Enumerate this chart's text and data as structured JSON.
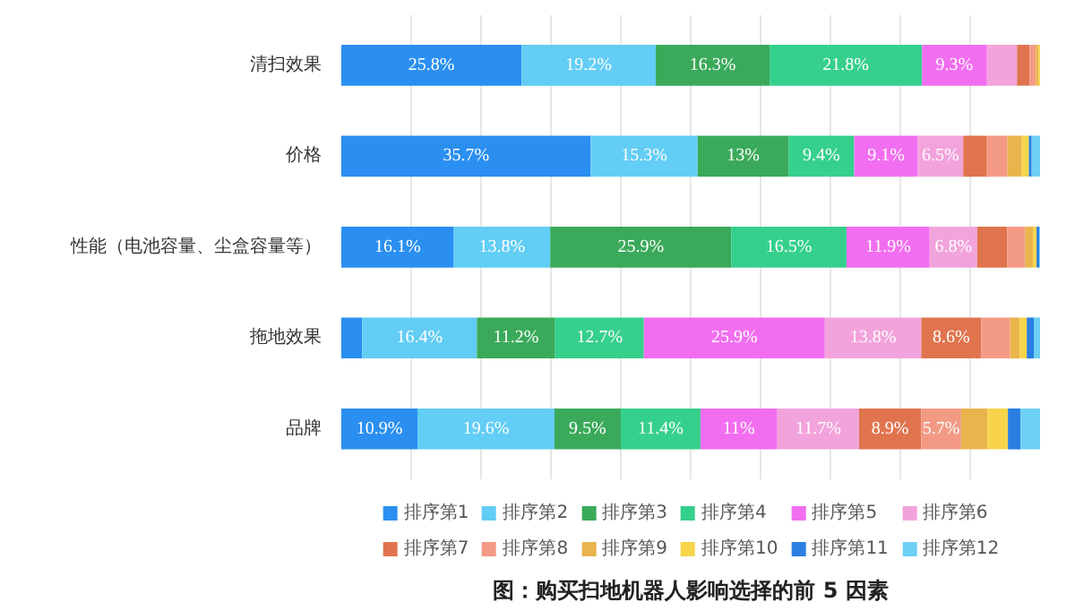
{
  "chart_data": {
    "type": "bar",
    "orientation": "horizontal",
    "stacked": true,
    "title": "图：购买扫地机器人影响选择的前 5 因素",
    "categories": [
      "清扫效果",
      "价格",
      "性能（电池容量、尘盒容量等）",
      "拖地效果",
      "品牌"
    ],
    "xlim": [
      0,
      100
    ],
    "xticks": [
      {
        "value": 10,
        "label": null
      },
      {
        "value": 20,
        "label": null
      },
      {
        "value": 30,
        "label": null
      },
      {
        "value": 40,
        "label": null
      },
      {
        "value": 50,
        "label": null
      },
      {
        "value": 60,
        "label": null
      },
      {
        "value": 70,
        "label": null
      },
      {
        "value": 80,
        "label": null
      },
      {
        "value": 90,
        "label": null
      }
    ],
    "tick_labels": "y",
    "grid": "x",
    "legend": "bottom",
    "series": [
      {
        "name": "排序第1",
        "color": "#2a8ff0",
        "values": [
          25.8,
          35.7,
          16.1,
          3.0,
          10.9
        ],
        "value_labels": [
          "25.8%",
          "35.7%",
          "16.1%",
          null,
          "10.9%"
        ]
      },
      {
        "name": "排序第2",
        "color": "#62cdf5",
        "values": [
          19.2,
          15.3,
          13.8,
          16.4,
          19.6
        ],
        "value_labels": [
          "19.2%",
          "15.3%",
          "13.8%",
          "16.4%",
          "19.6%"
        ]
      },
      {
        "name": "排序第3",
        "color": "#3aaa5a",
        "values": [
          16.3,
          13,
          25.9,
          11.2,
          9.5
        ],
        "value_labels": [
          "16.3%",
          "13%",
          "25.9%",
          "11.2%",
          "9.5%"
        ]
      },
      {
        "name": "排序第4",
        "color": "#35d08c",
        "values": [
          21.8,
          9.4,
          16.5,
          12.7,
          11.4
        ],
        "value_labels": [
          "21.8%",
          "9.4%",
          "16.5%",
          "12.7%",
          "11.4%"
        ]
      },
      {
        "name": "排序第5",
        "color": "#f26ef0",
        "values": [
          9.3,
          9.1,
          11.9,
          25.9,
          11
        ],
        "value_labels": [
          "9.3%",
          "9.1%",
          "11.9%",
          "25.9%",
          "11%"
        ]
      },
      {
        "name": "排序第6",
        "color": "#f3a3dc",
        "values": [
          4.3,
          6.5,
          6.8,
          13.8,
          11.7
        ],
        "value_labels": [
          null,
          "6.5%",
          "6.8%",
          "13.8%",
          "11.7%"
        ]
      },
      {
        "name": "排序第7",
        "color": "#e0744e",
        "values": [
          1.8,
          3.4,
          4.3,
          8.6,
          8.9
        ],
        "value_labels": [
          null,
          null,
          null,
          "8.6%",
          "8.9%"
        ]
      },
      {
        "name": "排序第8",
        "color": "#f39a85",
        "values": [
          0.9,
          2.9,
          2.6,
          4.1,
          5.7
        ],
        "value_labels": [
          null,
          null,
          null,
          null,
          "5.7%"
        ]
      },
      {
        "name": "排序第9",
        "color": "#e9b44c",
        "values": [
          0.4,
          2.1,
          1.1,
          1.4,
          3.8
        ]
      },
      {
        "name": "排序第10",
        "color": "#f7d44a",
        "values": [
          0.2,
          1.0,
          0.5,
          1.0,
          2.9
        ]
      },
      {
        "name": "排序第11",
        "color": "#2a7fe0",
        "values": [
          null,
          0.4,
          0.4,
          1.0,
          1.8
        ]
      },
      {
        "name": "排序第12",
        "color": "#6dd0f5",
        "values": [
          null,
          1.2,
          0.1,
          0.9,
          2.8
        ]
      }
    ]
  }
}
